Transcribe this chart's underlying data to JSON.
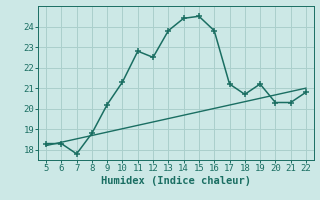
{
  "xlabel": "Humidex (Indice chaleur)",
  "background_color": "#cce8e6",
  "grid_color": "#aacfcc",
  "line_color": "#1a6e62",
  "curve1_x": [
    5,
    6,
    7,
    8,
    9,
    10,
    11,
    12,
    13,
    14,
    15,
    16,
    17,
    18,
    19,
    20,
    21,
    22
  ],
  "curve1_y": [
    18.3,
    18.3,
    17.8,
    18.8,
    20.2,
    21.3,
    22.8,
    22.5,
    23.8,
    24.4,
    24.5,
    23.8,
    21.2,
    20.7,
    21.2,
    20.3,
    20.3,
    20.8
  ],
  "curve2_x": [
    5,
    22
  ],
  "curve2_y": [
    18.2,
    21.0
  ],
  "xlim": [
    4.5,
    22.5
  ],
  "ylim": [
    17.5,
    25.0
  ],
  "xticks": [
    5,
    6,
    7,
    8,
    9,
    10,
    11,
    12,
    13,
    14,
    15,
    16,
    17,
    18,
    19,
    20,
    21,
    22
  ],
  "yticks": [
    18,
    19,
    20,
    21,
    22,
    23,
    24
  ],
  "tick_fontsize": 6.5,
  "xlabel_fontsize": 7.5
}
